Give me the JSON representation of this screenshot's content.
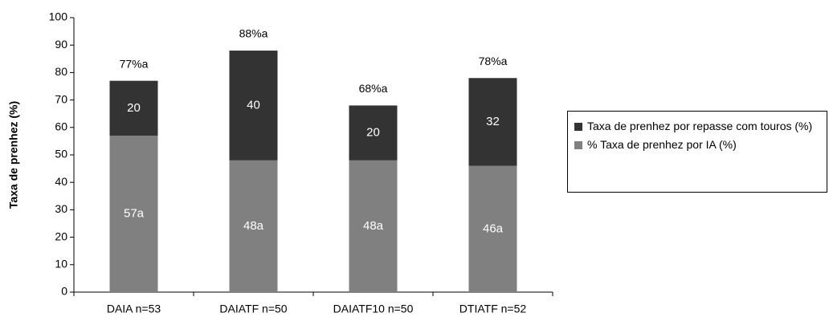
{
  "chart_data": {
    "type": "stacked_bar",
    "y_label": "Taxa de prenhez (%)",
    "categories": [
      "DAIA n=53",
      "DAIATF n=50",
      "DAIATF10 n=50",
      "DTIATF n=52"
    ],
    "series": [
      {
        "name": "% Taxa de prenhez por IA (%)",
        "color": "#808080",
        "values": [
          57,
          48,
          48,
          46
        ],
        "value_labels": [
          "57a",
          "48a",
          "48a",
          "46a"
        ]
      },
      {
        "name": "Taxa de prenhez por repasse com touros (%)",
        "color": "#333333",
        "values": [
          20,
          40,
          20,
          32
        ]
      }
    ],
    "total_labels": [
      "77%a",
      "88%a",
      "68%a",
      "78%a"
    ],
    "ylim": [
      0,
      100
    ],
    "yticks": [
      0,
      10,
      20,
      30,
      40,
      50,
      60,
      70,
      80,
      90,
      100
    ],
    "legend": "right"
  }
}
